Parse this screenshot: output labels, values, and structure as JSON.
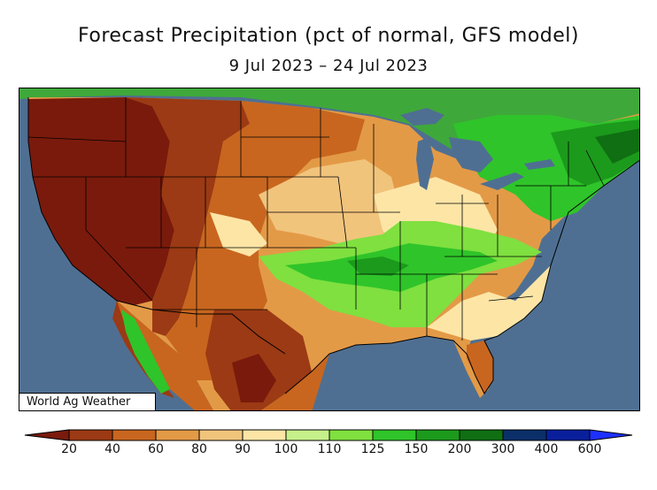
{
  "title": "Forecast Precipitation (pct of normal, GFS model)",
  "subtitle": "9 Jul 2023 – 24 Jul 2023",
  "credit": "World Ag Weather",
  "colors": {
    "ocean": "#4f6f92",
    "lake": "#4f6f92",
    "mexico_land": "#c9c9c9"
  },
  "legend": {
    "colors": [
      "#7a1a0c",
      "#9b3a14",
      "#c8661f",
      "#e39a47",
      "#f1c47c",
      "#fde5a6",
      "#c6f08a",
      "#7fe03f",
      "#2fc42a",
      "#1c9a1c",
      "#0f6f12",
      "#0b2f69",
      "#0a1f9c",
      "#1d30ff"
    ],
    "labels": [
      "20",
      "40",
      "60",
      "80",
      "90",
      "100",
      "110",
      "125",
      "150",
      "200",
      "300",
      "400",
      "600"
    ]
  }
}
